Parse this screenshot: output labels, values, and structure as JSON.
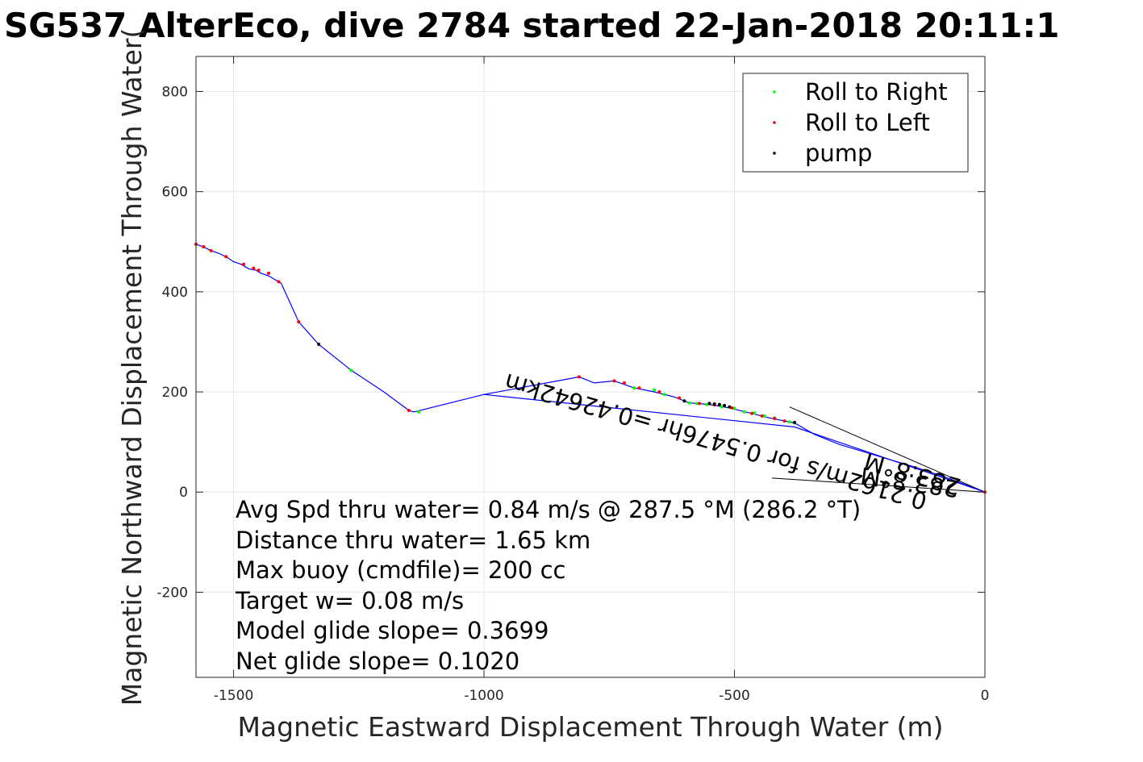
{
  "chart_data": {
    "type": "line",
    "title": "SG537 AlterEco, dive 2784 started 22-Jan-2018 20:11:1",
    "xlabel": "Magnetic Eastward Displacement Through Water (m)",
    "ylabel": "Magnetic Northward Displacement Through Water(",
    "xlim": [
      -1575,
      0
    ],
    "ylim": [
      -370,
      870
    ],
    "xticks": [
      -1500,
      -1000,
      -500,
      0
    ],
    "yticks": [
      800,
      600,
      400,
      200,
      0,
      -200
    ],
    "xtick_labels": [
      "-1500",
      "-1000",
      "-500",
      "0"
    ],
    "ytick_labels": [
      "800",
      "600",
      "400",
      "200",
      "0",
      "-200"
    ],
    "grid": true,
    "legend_position": "top-right",
    "legend": [
      {
        "name": "Roll to Right",
        "color": "#00ff00"
      },
      {
        "name": "Roll to Left",
        "color": "#ff0000"
      },
      {
        "name": "pump",
        "color": "#000000"
      }
    ],
    "series": [
      {
        "color": "#0000ff",
        "x": [
          -1575,
          -1560,
          -1545,
          -1530,
          -1515,
          -1500,
          -1485,
          -1470,
          -1455,
          -1445,
          -1430,
          -1405,
          -1370,
          -1330,
          -1265,
          -1200,
          -1150,
          -1140,
          -1000,
          -810,
          -780,
          -740,
          -700,
          -660,
          -620,
          -590,
          -550,
          -510,
          -470,
          -430,
          -380,
          -340,
          -290,
          -240,
          -190,
          -140,
          -80,
          0
        ],
        "y": [
          495,
          490,
          482,
          477,
          470,
          460,
          455,
          446,
          443,
          437,
          432,
          417,
          340,
          295,
          243,
          200,
          163,
          160,
          195,
          230,
          218,
          222,
          208,
          200,
          190,
          178,
          175,
          168,
          158,
          148,
          138,
          115,
          95,
          80,
          65,
          50,
          30,
          0
        ]
      },
      {
        "color": "#0000ff",
        "x": [
          -1000,
          -380,
          0
        ],
        "y": [
          195,
          130,
          0
        ]
      }
    ],
    "roll_right": {
      "x": [
        -1265,
        -1130,
        -700,
        -660,
        -640,
        -590,
        -575,
        -555,
        -525,
        -500,
        -480,
        -460,
        -440,
        -420,
        -390,
        -380
      ],
      "y": [
        243,
        160,
        208,
        204,
        195,
        178,
        177,
        175,
        170,
        167,
        160,
        158,
        152,
        148,
        140,
        138
      ]
    },
    "roll_left": {
      "x": [
        -1575,
        -1560,
        -1545,
        -1515,
        -1480,
        -1460,
        -1450,
        -1430,
        -1410,
        -1370,
        -1150,
        -810,
        -740,
        -720,
        -690,
        -650,
        -610,
        -570,
        -540,
        -505,
        -465,
        -445,
        -420,
        -400,
        0
      ],
      "y": [
        495,
        490,
        482,
        470,
        455,
        447,
        443,
        437,
        420,
        340,
        163,
        230,
        222,
        218,
        208,
        200,
        188,
        177,
        174,
        168,
        157,
        152,
        147,
        142,
        0
      ]
    },
    "pump": {
      "x": [
        -1330,
        -600,
        -550,
        -540,
        -530,
        -520,
        -510,
        -380
      ],
      "y": [
        295,
        182,
        177,
        176,
        175,
        173,
        170,
        139
      ]
    },
    "current_vectors": [
      {
        "from": [
          0,
          0
        ],
        "to": [
          -390,
          170
        ]
      },
      {
        "from": [
          0,
          0
        ],
        "to": [
          -425,
          28
        ]
      }
    ],
    "annotations": {
      "rotated_1": "283.8°M",
      "rotated_2": "0.2162m/s for 0.5476hr =0.42642km",
      "rotated_3": "283.8°M"
    },
    "stats": [
      "Avg Spd thru water=  0.84 m/s @ 287.5 °M (286.2 °T)",
      "Distance thru water=  1.65 km",
      "Max buoy (cmdfile)= 200 cc",
      "Target w= 0.08 m/s",
      "Model glide slope= 0.3699",
      "Net glide slope= 0.1020"
    ]
  }
}
